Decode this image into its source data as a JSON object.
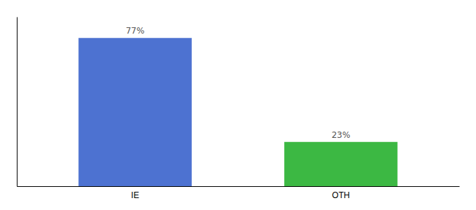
{
  "chart_data": {
    "type": "bar",
    "categories": [
      "IE",
      "OTH"
    ],
    "values": [
      77,
      23
    ],
    "value_labels": [
      "77%",
      "23%"
    ],
    "colors": [
      "#4d72d1",
      "#3cb843"
    ],
    "ylim": [
      0,
      88
    ],
    "data_labels": true,
    "tick_labels": "x"
  }
}
